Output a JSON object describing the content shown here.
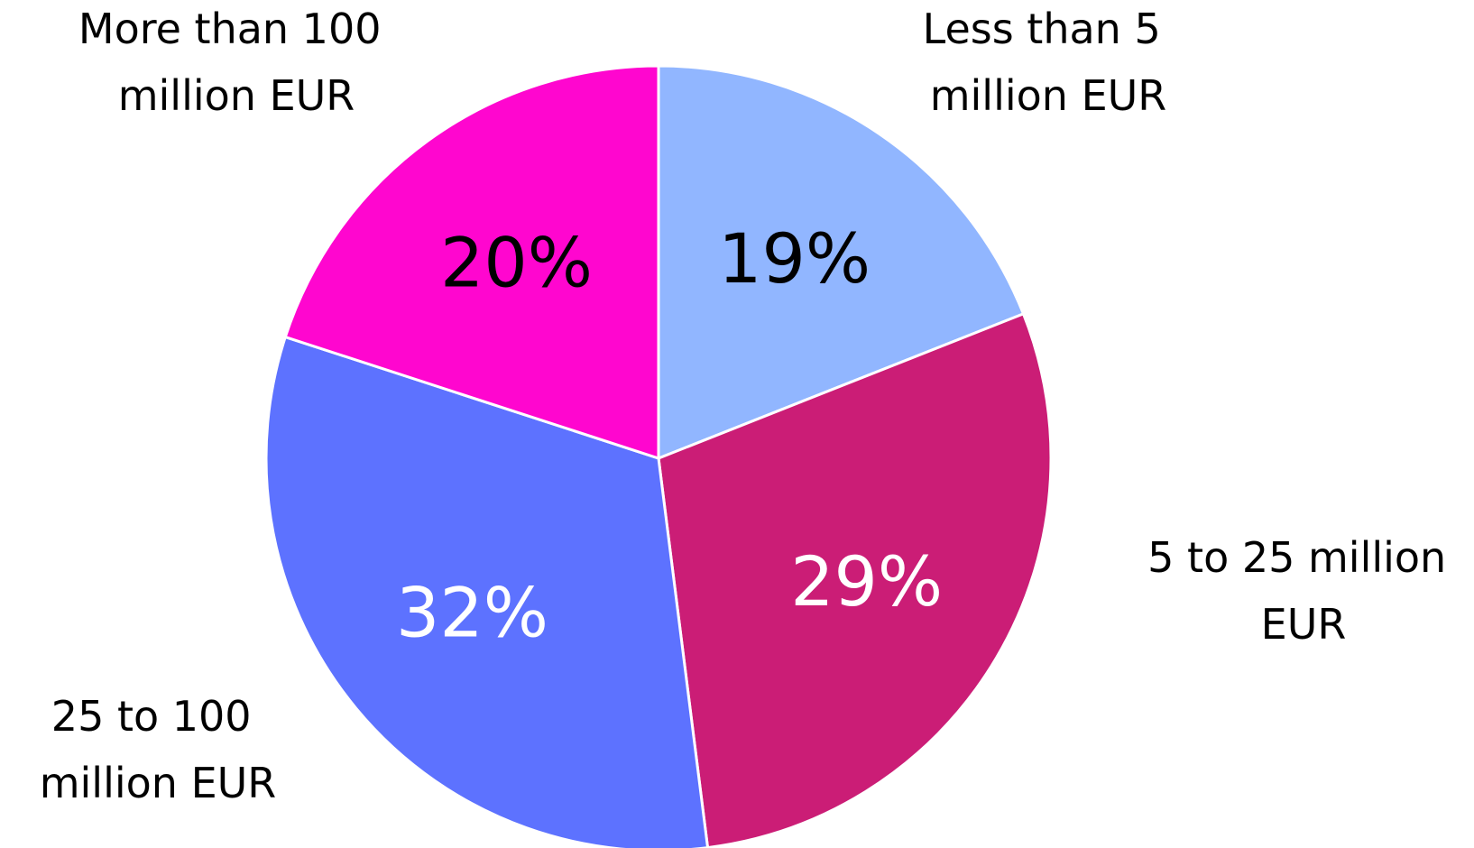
{
  "chart_data": {
    "type": "pie",
    "start_angle_deg": 0,
    "direction": "clockwise",
    "slices": [
      {
        "label_lines": [
          "Less than 5",
          "million EUR"
        ],
        "value": 19,
        "value_label": "19%",
        "color": "#91B6FF",
        "text_color": "#000000"
      },
      {
        "label_lines": [
          "5 to 25 million",
          "EUR"
        ],
        "value": 29,
        "value_label": "29%",
        "color": "#CB1D76",
        "text_color": "#FFFFFF"
      },
      {
        "label_lines": [
          "25 to 100",
          "million EUR"
        ],
        "value": 32,
        "value_label": "32%",
        "color": "#5D72FF",
        "text_color": "#FFFFFF"
      },
      {
        "label_lines": [
          "More than 100",
          "million EUR"
        ],
        "value": 20,
        "value_label": "20%",
        "color": "#FF06CF",
        "text_color": "#000000"
      }
    ]
  }
}
